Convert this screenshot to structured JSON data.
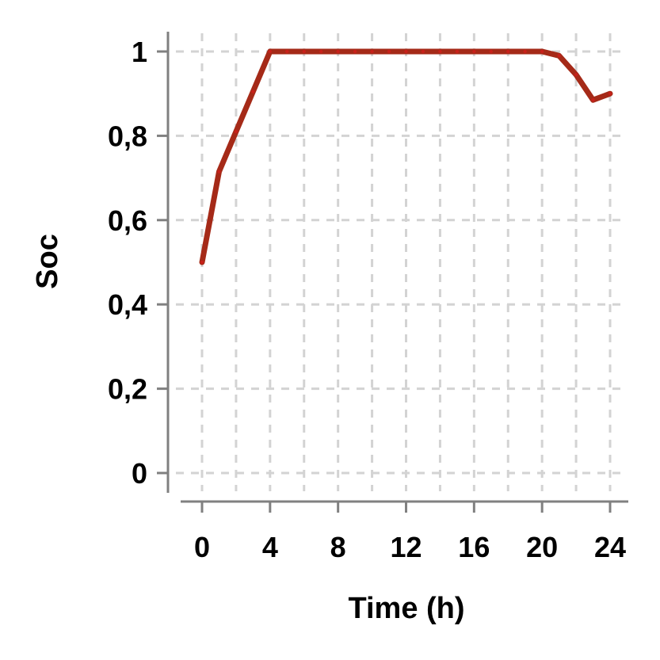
{
  "chart_data": {
    "type": "line",
    "title": "",
    "xlabel": "Time (h)",
    "ylabel": "Soc",
    "xlim": [
      0,
      24
    ],
    "ylim": [
      0,
      1
    ],
    "x_ticks": [
      {
        "value": 0,
        "label": "0"
      },
      {
        "value": 4,
        "label": "4"
      },
      {
        "value": 8,
        "label": "8"
      },
      {
        "value": 12,
        "label": "12"
      },
      {
        "value": 16,
        "label": "16"
      },
      {
        "value": 20,
        "label": "20"
      },
      {
        "value": 24,
        "label": "24"
      }
    ],
    "y_ticks": [
      {
        "value": 0,
        "label": "0"
      },
      {
        "value": 0.2,
        "label": "0,2"
      },
      {
        "value": 0.4,
        "label": "0,4"
      },
      {
        "value": 0.6,
        "label": "0,6"
      },
      {
        "value": 0.8,
        "label": "0,8"
      },
      {
        "value": 1,
        "label": "1"
      }
    ],
    "x_grid_values": [
      0,
      2,
      4,
      6,
      8,
      10,
      12,
      14,
      16,
      18,
      20,
      22,
      24
    ],
    "y_grid_values": [
      0,
      0.2,
      0.4,
      0.6,
      0.8,
      1
    ],
    "grid": true,
    "grid_style": "dashed",
    "series": [
      {
        "color": "#a52a18",
        "x": [
          0,
          1,
          2,
          3,
          4,
          5,
          6,
          7,
          8,
          9,
          10,
          11,
          12,
          13,
          14,
          15,
          16,
          17,
          18,
          19,
          20,
          21,
          22,
          23,
          24
        ],
        "values": [
          0.5,
          0.715,
          0.81,
          0.905,
          1,
          1,
          1,
          1,
          1,
          1,
          1,
          1,
          1,
          1,
          1,
          1,
          1,
          1,
          1,
          1,
          1,
          0.99,
          0.945,
          0.885,
          0.9
        ]
      }
    ]
  }
}
